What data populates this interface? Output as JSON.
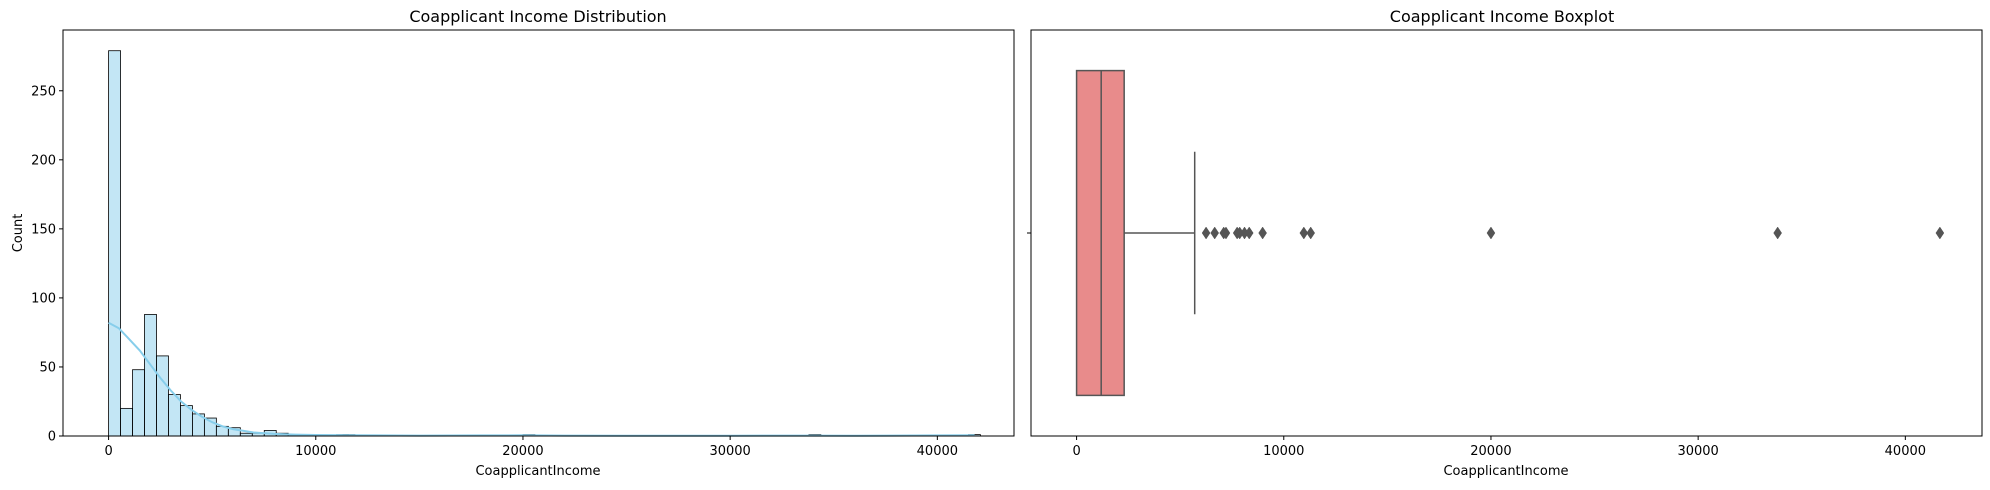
{
  "chart_data": [
    {
      "type": "bar",
      "title": "Coapplicant Income Distribution",
      "xlabel": "CoapplicantIncome",
      "ylabel": "Count",
      "xlim": [
        -2200,
        43700
      ],
      "ylim": [
        0,
        294
      ],
      "xticks": [
        0,
        10000,
        20000,
        30000,
        40000
      ],
      "yticks": [
        0,
        50,
        100,
        150,
        200,
        250
      ],
      "bin_width": 578,
      "bins": [
        {
          "x0": 0,
          "count": 279
        },
        {
          "x0": 578,
          "count": 20
        },
        {
          "x0": 1156,
          "count": 48
        },
        {
          "x0": 1734,
          "count": 88
        },
        {
          "x0": 2312,
          "count": 58
        },
        {
          "x0": 2890,
          "count": 30
        },
        {
          "x0": 3468,
          "count": 22
        },
        {
          "x0": 4046,
          "count": 16
        },
        {
          "x0": 4624,
          "count": 13
        },
        {
          "x0": 5202,
          "count": 7
        },
        {
          "x0": 5780,
          "count": 6
        },
        {
          "x0": 6358,
          "count": 2
        },
        {
          "x0": 6936,
          "count": 2
        },
        {
          "x0": 7514,
          "count": 4
        },
        {
          "x0": 8092,
          "count": 2
        },
        {
          "x0": 8670,
          "count": 1
        },
        {
          "x0": 11000,
          "count": 1
        },
        {
          "x0": 11312,
          "count": 1
        },
        {
          "x0": 20000,
          "count": 1
        },
        {
          "x0": 33800,
          "count": 1
        },
        {
          "x0": 41500,
          "count": 1
        }
      ],
      "kde": {
        "x": [
          0,
          500,
          1000,
          1500,
          2000,
          2500,
          3000,
          3500,
          4000,
          4500,
          5000,
          5500,
          6000,
          7000,
          8000,
          9000,
          10000,
          12000,
          15000,
          18000,
          20000,
          22000,
          25000,
          30000,
          33800,
          36000,
          40000,
          41800
        ],
        "y": [
          82,
          78,
          70,
          62,
          52,
          42,
          33,
          25,
          19,
          14,
          10,
          7,
          5,
          2.5,
          1.5,
          1,
          0.7,
          0.5,
          0.3,
          0.4,
          0.5,
          0.3,
          0.2,
          0.2,
          0.3,
          0.2,
          0.4,
          0.6
        ]
      },
      "colors": {
        "fill": "#87ceeb",
        "edge": "#000000",
        "kde": "#87ceeb"
      }
    },
    {
      "type": "boxplot",
      "title": "Coapplicant Income Boxplot",
      "xlabel": "CoapplicantIncome",
      "xlim": [
        -2200,
        43700
      ],
      "xticks": [
        0,
        10000,
        20000,
        30000,
        40000
      ],
      "min": 0,
      "q1": 0,
      "median": 1188,
      "q3": 2297,
      "whisker_high": 5701,
      "outliers": [
        6250,
        6666,
        7101,
        7210,
        7750,
        7873,
        8106,
        8333,
        8980,
        10968,
        11300,
        20000,
        33837,
        41667
      ],
      "colors": {
        "box": "#e88b8b",
        "line": "#555555"
      }
    }
  ]
}
